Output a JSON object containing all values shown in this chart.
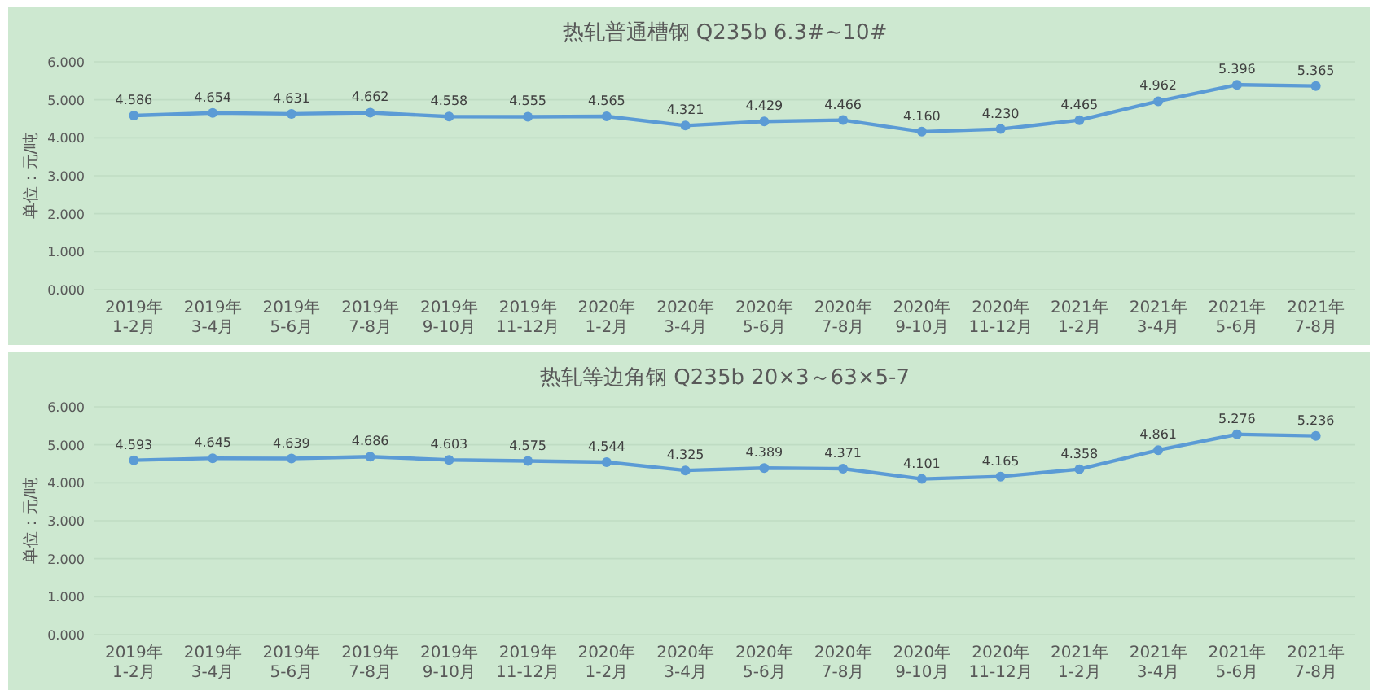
{
  "chart_data": [
    {
      "type": "line",
      "title": "热轧普通槽钢 Q235b 6.3#~10#",
      "ylabel": "单位：元/吨",
      "categories": [
        "2019年1-2月",
        "2019年3-4月",
        "2019年5-6月",
        "2019年7-8月",
        "2019年9-10月",
        "2019年11-12月",
        "2020年1-2月",
        "2020年3-4月",
        "2020年5-6月",
        "2020年7-8月",
        "2020年9-10月",
        "2020年11-12月",
        "2021年1-2月",
        "2021年3-4月",
        "2021年5-6月",
        "2021年7-8月"
      ],
      "series": [
        {
          "color": "#5b9bd5",
          "values": [
            4.586,
            4.654,
            4.631,
            4.662,
            4.558,
            4.555,
            4.565,
            4.321,
            4.429,
            4.466,
            4.16,
            4.23,
            4.465,
            4.962,
            5.396,
            5.365
          ],
          "value_labels": [
            "4.586",
            "4.654",
            "4.631",
            "4.662",
            "4.558",
            "4.555",
            "4.565",
            "4.321",
            "4.429",
            "4.466",
            "4.160",
            "4.230",
            "4.465",
            "4.962",
            "5.396",
            "5.365"
          ]
        }
      ],
      "ylim": [
        0,
        6
      ],
      "yticks": [
        {
          "value": 0,
          "label": "0.000"
        },
        {
          "value": 1,
          "label": "1.000"
        },
        {
          "value": 2,
          "label": "2.000"
        },
        {
          "value": 3,
          "label": "3.000"
        },
        {
          "value": 4,
          "label": "4.000"
        },
        {
          "value": 5,
          "label": "5.000"
        },
        {
          "value": 6,
          "label": "6.000"
        }
      ],
      "grid": "y",
      "marker": "circle",
      "line_style": "solid"
    },
    {
      "type": "line",
      "title": "热轧等边角钢 Q235b 20×3～63×5-7",
      "ylabel": "单位：元/吨",
      "categories": [
        "2019年1-2月",
        "2019年3-4月",
        "2019年5-6月",
        "2019年7-8月",
        "2019年9-10月",
        "2019年11-12月",
        "2020年1-2月",
        "2020年3-4月",
        "2020年5-6月",
        "2020年7-8月",
        "2020年9-10月",
        "2020年11-12月",
        "2021年1-2月",
        "2021年3-4月",
        "2021年5-6月",
        "2021年7-8月"
      ],
      "series": [
        {
          "color": "#5b9bd5",
          "values": [
            4.593,
            4.645,
            4.639,
            4.686,
            4.603,
            4.575,
            4.544,
            4.325,
            4.389,
            4.371,
            4.101,
            4.165,
            4.358,
            4.861,
            5.276,
            5.236
          ],
          "value_labels": [
            "4.593",
            "4.645",
            "4.639",
            "4.686",
            "4.603",
            "4.575",
            "4.544",
            "4.325",
            "4.389",
            "4.371",
            "4.101",
            "4.165",
            "4.358",
            "4.861",
            "5.276",
            "5.236"
          ]
        }
      ],
      "ylim": [
        0,
        6
      ],
      "yticks": [
        {
          "value": 0,
          "label": "0.000"
        },
        {
          "value": 1,
          "label": "1.000"
        },
        {
          "value": 2,
          "label": "2.000"
        },
        {
          "value": 3,
          "label": "3.000"
        },
        {
          "value": 4,
          "label": "4.000"
        },
        {
          "value": 5,
          "label": "5.000"
        },
        {
          "value": 6,
          "label": "6.000"
        }
      ],
      "grid": "y",
      "marker": "circle",
      "line_style": "solid"
    }
  ]
}
